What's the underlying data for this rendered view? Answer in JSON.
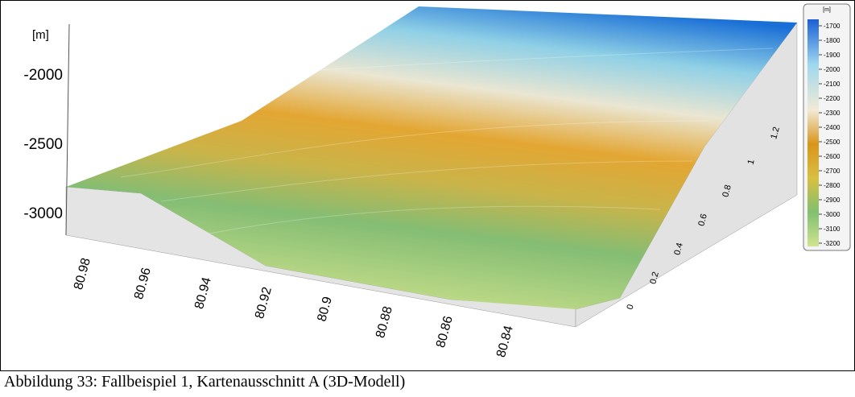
{
  "figure": {
    "z_axis": {
      "unit": "[m]",
      "ticks": [
        -2000,
        -2500,
        -3000
      ]
    },
    "x_axis": {
      "ticks": [
        80.98,
        80.96,
        80.94,
        80.92,
        80.9,
        80.88,
        80.86,
        80.84
      ]
    },
    "y_axis": {
      "ticks": [
        0,
        0.2,
        0.4,
        0.6,
        0.8,
        1,
        1.2
      ]
    },
    "legend": {
      "unit": "[m]",
      "labels": [
        -1700,
        -1800,
        -1900,
        -2000,
        -2100,
        -2200,
        -2300,
        -2400,
        -2500,
        -2600,
        -2700,
        -2800,
        -2900,
        -3000,
        -3100,
        -3200
      ]
    }
  },
  "caption": "Abbildung 33: Fallbeispiel 1, Kartenausschnitt A (3D-Modell)"
}
